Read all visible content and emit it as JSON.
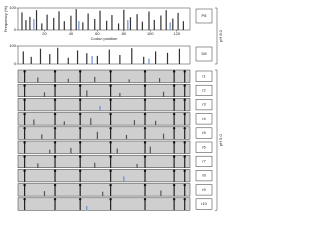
{
  "chart_data": [
    {
      "type": "bar",
      "label": "P8",
      "ylabel": "Frequency (%)",
      "xlabel": "Codon position",
      "shaded": false,
      "xlim": [
        0,
        130
      ],
      "xticks": [
        20,
        40,
        60,
        80,
        100,
        120
      ],
      "ylim": [
        0,
        100
      ],
      "yticks": [
        0,
        100
      ],
      "series": [
        {
          "color": "#333333",
          "x": [
            3,
            6,
            9,
            14,
            18,
            22,
            27,
            31,
            35,
            40,
            44,
            49,
            53,
            58,
            62,
            67,
            71,
            76,
            80,
            85,
            90,
            94,
            99,
            103,
            108,
            112,
            117,
            121,
            125
          ],
          "values": [
            80,
            45,
            60,
            90,
            30,
            70,
            55,
            85,
            40,
            65,
            95,
            35,
            75,
            50,
            88,
            42,
            68,
            30,
            92,
            58,
            72,
            38,
            84,
            46,
            66,
            90,
            52,
            78,
            40
          ]
        },
        {
          "color": "#6f8fd0",
          "x": [
            12,
            46,
            83,
            115
          ],
          "values": [
            50,
            40,
            45,
            35
          ]
        }
      ]
    },
    {
      "type": "bar",
      "label": "D8",
      "shaded": false,
      "xlim": [
        0,
        130
      ],
      "ylim": [
        0,
        100
      ],
      "yticks": [
        0,
        100
      ],
      "series": [
        {
          "color": "#333333",
          "x": [
            4,
            10,
            17,
            24,
            30,
            38,
            45,
            52,
            60,
            69,
            77,
            86,
            95,
            104,
            113,
            122
          ],
          "values": [
            70,
            40,
            85,
            55,
            90,
            35,
            75,
            60,
            45,
            80,
            50,
            88,
            40,
            70,
            62,
            85
          ]
        },
        {
          "color": "#6f8fd0",
          "x": [
            56,
            99
          ],
          "values": [
            45,
            30
          ]
        }
      ]
    },
    {
      "type": "bar",
      "label": "r1",
      "shaded": true,
      "xlim": [
        0,
        130
      ],
      "ylim": [
        0,
        100
      ],
      "series": [
        {
          "color": "#222222",
          "x": [
            5,
            28,
            47,
            70,
            96,
            118,
            126
          ],
          "values": [
            100,
            100,
            100,
            100,
            100,
            100,
            100
          ]
        },
        {
          "color": "#555555",
          "x": [
            15,
            38,
            58,
            84,
            107
          ],
          "values": [
            40,
            30,
            45,
            25,
            35
          ]
        }
      ]
    },
    {
      "type": "bar",
      "label": "r2",
      "shaded": true,
      "xlim": [
        0,
        130
      ],
      "ylim": [
        0,
        100
      ],
      "series": [
        {
          "color": "#222222",
          "x": [
            5,
            28,
            47,
            70,
            96,
            118,
            126
          ],
          "values": [
            100,
            100,
            100,
            100,
            100,
            100,
            100
          ]
        },
        {
          "color": "#555555",
          "x": [
            20,
            52,
            77,
            110
          ],
          "values": [
            35,
            50,
            30,
            40
          ]
        }
      ]
    },
    {
      "type": "bar",
      "label": "r3",
      "shaded": true,
      "xlim": [
        0,
        130
      ],
      "ylim": [
        0,
        100
      ],
      "series": [
        {
          "color": "#222222",
          "x": [
            5,
            28,
            47,
            70,
            96,
            118,
            126
          ],
          "values": [
            100,
            100,
            100,
            100,
            100,
            100,
            100
          ]
        },
        {
          "color": "#6f8fd0",
          "x": [
            62
          ],
          "values": [
            40
          ]
        }
      ]
    },
    {
      "type": "bar",
      "label": "r4",
      "shaded": true,
      "xlim": [
        0,
        130
      ],
      "ylim": [
        0,
        100
      ],
      "series": [
        {
          "color": "#222222",
          "x": [
            5,
            28,
            47,
            70,
            96,
            118,
            126
          ],
          "values": [
            100,
            100,
            100,
            100,
            100,
            100,
            100
          ]
        },
        {
          "color": "#555555",
          "x": [
            12,
            35,
            55,
            88,
            104
          ],
          "values": [
            45,
            30,
            55,
            40,
            35
          ]
        }
      ]
    },
    {
      "type": "bar",
      "label": "r5",
      "shaded": true,
      "xlim": [
        0,
        130
      ],
      "ylim": [
        0,
        100
      ],
      "series": [
        {
          "color": "#222222",
          "x": [
            5,
            28,
            47,
            70,
            96,
            118,
            126
          ],
          "values": [
            100,
            100,
            100,
            100,
            100,
            100,
            100
          ]
        },
        {
          "color": "#555555",
          "x": [
            18,
            60,
            82,
            110
          ],
          "values": [
            40,
            60,
            35,
            45
          ]
        }
      ]
    },
    {
      "type": "bar",
      "label": "r6",
      "shaded": true,
      "xlim": [
        0,
        130
      ],
      "ylim": [
        0,
        100
      ],
      "series": [
        {
          "color": "#222222",
          "x": [
            5,
            28,
            47,
            70,
            96,
            118,
            126
          ],
          "values": [
            100,
            100,
            100,
            100,
            100,
            100,
            100
          ]
        },
        {
          "color": "#555555",
          "x": [
            24,
            40,
            75,
            100
          ],
          "values": [
            30,
            45,
            40,
            55
          ]
        }
      ]
    },
    {
      "type": "bar",
      "label": "r7",
      "shaded": true,
      "xlim": [
        0,
        130
      ],
      "ylim": [
        0,
        100
      ],
      "series": [
        {
          "color": "#222222",
          "x": [
            5,
            28,
            47,
            70,
            96,
            118,
            126
          ],
          "values": [
            100,
            100,
            100,
            100,
            100,
            100,
            100
          ]
        },
        {
          "color": "#555555",
          "x": [
            15,
            58,
            90
          ],
          "values": [
            35,
            40,
            30
          ]
        }
      ]
    },
    {
      "type": "bar",
      "label": "r8",
      "shaded": true,
      "xlim": [
        0,
        130
      ],
      "ylim": [
        0,
        100
      ],
      "series": [
        {
          "color": "#222222",
          "x": [
            5,
            28,
            47,
            70,
            96,
            118,
            126
          ],
          "values": [
            100,
            100,
            100,
            100,
            100,
            100,
            100
          ]
        },
        {
          "color": "#6f8fd0",
          "x": [
            80
          ],
          "values": [
            45
          ]
        }
      ]
    },
    {
      "type": "bar",
      "label": "r9",
      "shaded": true,
      "xlim": [
        0,
        130
      ],
      "ylim": [
        0,
        100
      ],
      "series": [
        {
          "color": "#222222",
          "x": [
            5,
            28,
            47,
            70,
            96,
            118,
            126
          ],
          "values": [
            100,
            100,
            100,
            100,
            100,
            100,
            100
          ]
        },
        {
          "color": "#555555",
          "x": [
            20,
            64,
            108
          ],
          "values": [
            40,
            35,
            45
          ]
        }
      ]
    },
    {
      "type": "bar",
      "label": "r10",
      "shaded": true,
      "xlim": [
        0,
        130
      ],
      "ylim": [
        0,
        100
      ],
      "series": [
        {
          "color": "#222222",
          "x": [
            5,
            28,
            47,
            70,
            96,
            118,
            126
          ],
          "values": [
            100,
            100,
            100,
            100,
            100,
            100,
            100
          ]
        },
        {
          "color": "#6f8fd0",
          "x": [
            52
          ],
          "values": [
            35
          ]
        }
      ]
    }
  ],
  "brackets": [
    "pH 8.0",
    "pH 5.0"
  ]
}
